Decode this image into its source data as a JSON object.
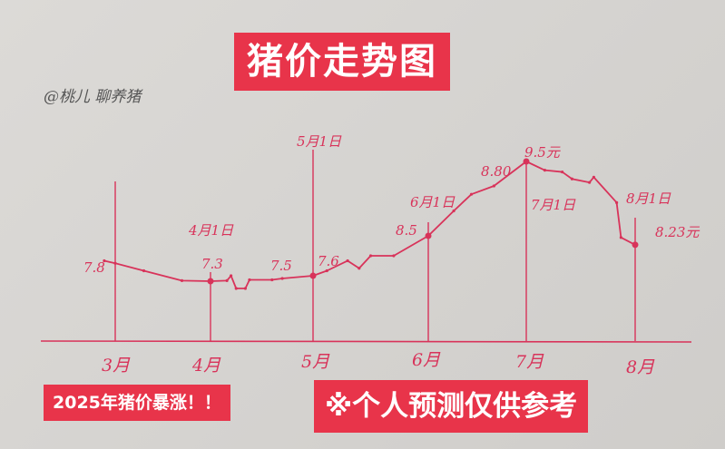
{
  "title": "猪价走势图",
  "author": "@桃儿 聊养猪",
  "banner_left": "2025年猪价暴涨！！",
  "banner_right": "※个人预测仅供参考",
  "chart_data": {
    "type": "line",
    "title": "猪价走势图",
    "xlabel": "",
    "ylabel": "",
    "grid": false,
    "color": "#d8335a",
    "x_ticks": [
      {
        "month": 3,
        "label": "3月"
      },
      {
        "month": 4,
        "label": "4月"
      },
      {
        "month": 5,
        "label": "5月"
      },
      {
        "month": 6,
        "label": "6月"
      },
      {
        "month": 7,
        "label": "7月"
      },
      {
        "month": 8,
        "label": "8月"
      }
    ],
    "series": [
      {
        "x": [
          2.78,
          3.0,
          3.3,
          3.7,
          4.0,
          4.16,
          4.2,
          4.25,
          4.34,
          4.38,
          4.6,
          4.7,
          5.0,
          5.12,
          5.3,
          5.4,
          5.5,
          5.7,
          6.0,
          6.26,
          6.44,
          6.67,
          7.0,
          7.17,
          7.33,
          7.42,
          7.58,
          7.62,
          7.83,
          7.87,
          8.0
        ],
        "y": [
          7.8,
          7.75,
          7.6,
          7.32,
          7.3,
          7.32,
          7.5,
          7.1,
          7.1,
          7.35,
          7.35,
          7.4,
          7.5,
          7.6,
          7.8,
          7.65,
          7.9,
          7.9,
          8.5,
          8.65,
          8.75,
          8.8,
          9.5,
          9.25,
          9.2,
          9.0,
          8.9,
          9.05,
          8.7,
          8.45,
          8.23
        ]
      }
    ],
    "annotations": {
      "v_7_8": "7.8",
      "date_apr1": "4月1日",
      "v_7_3": "7.3",
      "v_7_5": "7.5",
      "v_7_6": "7.6",
      "date_may1": "5月1日",
      "date_jun1": "6月1日",
      "v_8_5": "8.5",
      "v_8_80": "8.80",
      "v_peak": "9.5元",
      "date_jul1": "7月1日",
      "date_aug1": "8月1日",
      "v_8_23": "8.23元"
    }
  }
}
